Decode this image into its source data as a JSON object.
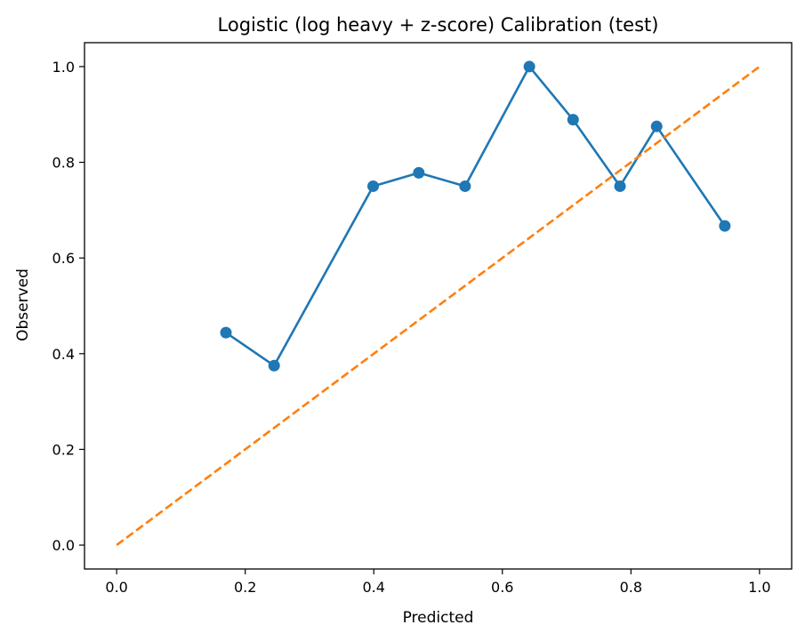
{
  "chart_data": {
    "type": "line",
    "title": "Logistic (log heavy + z-score) Calibration (test)",
    "xlabel": "Predicted",
    "ylabel": "Observed",
    "xlim": [
      -0.05,
      1.05
    ],
    "ylim": [
      -0.05,
      1.05
    ],
    "xticks": [
      0.0,
      0.2,
      0.4,
      0.6,
      0.8,
      1.0
    ],
    "yticks": [
      0.0,
      0.2,
      0.4,
      0.6,
      0.8,
      1.0
    ],
    "xtick_labels": [
      "0.0",
      "0.2",
      "0.4",
      "0.6",
      "0.8",
      "1.0"
    ],
    "ytick_labels": [
      "0.0",
      "0.2",
      "0.4",
      "0.6",
      "0.8",
      "1.0"
    ],
    "grid": false,
    "series": [
      {
        "style": "line-with-markers",
        "color": "#1f77b4",
        "x": [
          0.17,
          0.245,
          0.399,
          0.47,
          0.542,
          0.642,
          0.71,
          0.783,
          0.84,
          0.946
        ],
        "y": [
          0.444,
          0.375,
          0.75,
          0.778,
          0.75,
          1.0,
          0.889,
          0.75,
          0.875,
          0.667
        ]
      },
      {
        "style": "dashed",
        "color": "#ff7f0e",
        "x": [
          0.0,
          1.0
        ],
        "y": [
          0.0,
          1.0
        ]
      }
    ]
  }
}
